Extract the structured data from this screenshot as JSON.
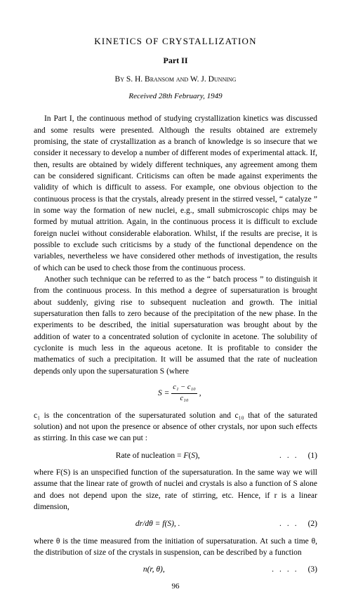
{
  "title": "KINETICS OF CRYSTALLIZATION",
  "part": "Part II",
  "authors": "By S. H. Bransom and W. J. Dunning",
  "received": "Received 28th February, 1949",
  "para1": "In Part I, the continuous method of studying crystallization kinetics was discussed and some results were presented. Although the results obtained are extremely promising, the state of crystallization as a branch of knowledge is so insecure that we consider it necessary to develop a number of different modes of experimental attack. If, then, results are obtained by widely different techniques, any agreement among them can be considered significant. Criticisms can often be made against experiments the validity of which is difficult to assess. For example, one obvious objection to the continuous process is that the crystals, already present in the stirred vessel, “ catalyze ” in some way the formation of new nuclei, e.g., small submicroscopic chips may be formed by mutual attrition. Again, in the continuous process it is difficult to exclude foreign nuclei without considerable elaboration. Whilst, if the results are precise, it is possible to exclude such criticisms by a study of the functional dependence on the variables, nevertheless we have considered other methods of investigation, the results of which can be used to check those from the continuous process.",
  "para2": "Another such technique can be referred to as the “ batch process ” to distinguish it from the continuous process. In this method a degree of supersaturation is brought about suddenly, giving rise to subsequent nucleation and growth. The initial supersaturation then falls to zero because of the precipitation of the new phase. In the experiments to be described, the initial supersaturation was brought about by the addition of water to a concentrated solution of cyclonite in acetone. The solubility of cyclonite is much less in the aqueous acetone. It is profitable to consider the mathematics of such a precipitation. It will be assumed that the rate of nucleation depends only upon the supersaturation S (where",
  "eqS": {
    "lhs": "S =",
    "num": "c₁ − c₁₀",
    "den": "c₁₀",
    "tail": ","
  },
  "para3a": "c₁ is the concentration of the supersaturated solution and c₁₀ that of the saturated solution) and not upon the presence or absence of other crystals, nor upon such effects as stirring. In this case we can put :",
  "eq1": {
    "text": "Rate of nucleation = F(S),",
    "num": "(1)"
  },
  "para4": "where F(S) is an unspecified function of the supersaturation. In the same way we will assume that the linear rate of growth of nuclei and crystals is also a function of S alone and does not depend upon the size, rate of stirring, etc. Hence, if r is a linear dimension,",
  "eq2": {
    "text": "dr/dθ = f(S), .",
    "num": "(2)"
  },
  "para5": "where θ is the time measured from the initiation of supersaturation. At such a time θ, the distribution of size of the crystals in suspension, can be described by a function",
  "eq3": {
    "text": "n(r, θ),",
    "num": "(3)"
  },
  "pageNumber": "96"
}
